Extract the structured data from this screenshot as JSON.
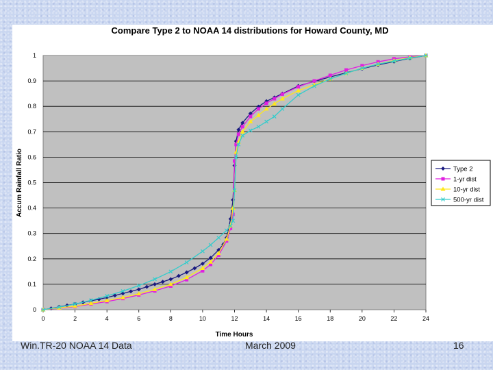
{
  "footer": {
    "left": "Win.TR-20 NOAA 14 Data",
    "center": "March 2009",
    "page_number": "16"
  },
  "colors": {
    "plot_background": "#c0c0c0",
    "slide_background": "#c9d6f0"
  },
  "chart_data": {
    "type": "line",
    "title": "Compare Type 2 to NOAA 14 distributions for Howard County, MD",
    "xlabel": "Time  Hours",
    "ylabel": "Accum Rainfall Ratio",
    "xlim": [
      0,
      24
    ],
    "ylim": [
      0,
      1
    ],
    "x_ticks": [
      "0",
      "2",
      "4",
      "6",
      "8",
      "10",
      "12",
      "14",
      "16",
      "18",
      "20",
      "22",
      "24"
    ],
    "y_ticks": [
      "0",
      "0.1",
      "0.2",
      "0.3",
      "0.4",
      "0.5",
      "0.6",
      "0.7",
      "0.8",
      "0.9",
      "1"
    ],
    "grid": "horizontal",
    "legend_position": "right",
    "series": [
      {
        "name": "Type 2",
        "color": "#1a1a80",
        "marker": "diamond",
        "x": [
          0,
          0.5,
          1,
          1.5,
          2,
          2.5,
          3,
          3.5,
          4,
          4.5,
          5,
          5.5,
          6,
          6.5,
          7,
          7.5,
          8,
          8.5,
          9,
          9.5,
          10,
          10.5,
          11,
          11.3,
          11.5,
          11.75,
          11.9,
          12,
          12.1,
          12.25,
          12.5,
          13,
          13.5,
          14,
          14.5,
          15,
          16,
          17,
          18,
          19,
          20,
          21,
          22,
          23,
          24
        ],
        "y": [
          0,
          0.005,
          0.011,
          0.017,
          0.022,
          0.029,
          0.035,
          0.041,
          0.048,
          0.056,
          0.064,
          0.072,
          0.08,
          0.09,
          0.1,
          0.11,
          0.12,
          0.133,
          0.147,
          0.163,
          0.181,
          0.204,
          0.235,
          0.257,
          0.283,
          0.357,
          0.432,
          0.567,
          0.663,
          0.708,
          0.735,
          0.772,
          0.799,
          0.82,
          0.835,
          0.85,
          0.88,
          0.898,
          0.916,
          0.932,
          0.948,
          0.963,
          0.976,
          0.989,
          1.0
        ]
      },
      {
        "name": "1-yr dist",
        "color": "#e020e0",
        "marker": "square",
        "x": [
          0,
          1,
          2,
          3,
          4,
          5,
          6,
          7,
          8,
          9,
          10,
          10.5,
          11,
          11.5,
          11.75,
          11.9,
          12,
          12.1,
          12.25,
          12.5,
          13,
          13.5,
          14,
          14.5,
          15,
          16,
          17,
          18,
          19,
          20,
          21,
          22,
          23,
          24
        ],
        "y": [
          0,
          0.006,
          0.012,
          0.022,
          0.032,
          0.044,
          0.058,
          0.074,
          0.093,
          0.118,
          0.153,
          0.178,
          0.214,
          0.27,
          0.32,
          0.375,
          0.585,
          0.65,
          0.69,
          0.72,
          0.76,
          0.79,
          0.812,
          0.83,
          0.848,
          0.877,
          0.9,
          0.922,
          0.943,
          0.96,
          0.975,
          0.987,
          0.995,
          1.0
        ]
      },
      {
        "name": "10-yr dist",
        "color": "#ffe81a",
        "marker": "triangle",
        "x": [
          0,
          1,
          2,
          3,
          4,
          5,
          6,
          7,
          8,
          9,
          10,
          10.5,
          11,
          11.5,
          11.75,
          11.9,
          12,
          12.1,
          12.25,
          12.5,
          13,
          13.5,
          14,
          14.5,
          15,
          16,
          17,
          18,
          19,
          20,
          21,
          22,
          23,
          24
        ],
        "y": [
          0,
          0.007,
          0.014,
          0.025,
          0.036,
          0.048,
          0.063,
          0.08,
          0.1,
          0.127,
          0.163,
          0.188,
          0.222,
          0.278,
          0.33,
          0.4,
          0.47,
          0.62,
          0.66,
          0.7,
          0.74,
          0.765,
          0.79,
          0.81,
          0.83,
          0.862,
          0.885,
          0.908,
          0.93,
          0.95,
          0.966,
          0.98,
          0.992,
          1.0
        ]
      },
      {
        "name": "500-yr dist",
        "color": "#33cccc",
        "marker": "x",
        "x": [
          0,
          1,
          2,
          3,
          4,
          5,
          6,
          7,
          8,
          9,
          10,
          10.5,
          11,
          11.5,
          11.75,
          11.9,
          12,
          12.1,
          12.25,
          12.5,
          13,
          13.5,
          14,
          14.5,
          15,
          16,
          17,
          18,
          19,
          20,
          21,
          22,
          23,
          24
        ],
        "y": [
          0,
          0.01,
          0.022,
          0.037,
          0.054,
          0.073,
          0.095,
          0.12,
          0.15,
          0.186,
          0.23,
          0.255,
          0.283,
          0.312,
          0.33,
          0.35,
          0.47,
          0.6,
          0.65,
          0.685,
          0.705,
          0.72,
          0.74,
          0.76,
          0.79,
          0.845,
          0.88,
          0.908,
          0.93,
          0.95,
          0.966,
          0.978,
          0.99,
          1.0
        ]
      }
    ]
  }
}
